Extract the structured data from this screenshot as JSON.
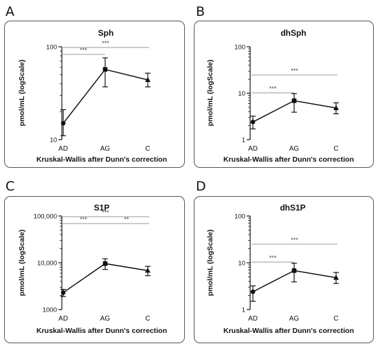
{
  "panels": [
    {
      "letter": "A"
    },
    {
      "letter": "B"
    },
    {
      "letter": "C"
    },
    {
      "letter": "D"
    }
  ],
  "chart_data": [
    {
      "type": "line",
      "title": "Sph",
      "xlabel": "Kruskal-Wallis after Dunn's correction",
      "ylabel": "pmol/mL (logScale)",
      "yscale": "log",
      "ylim": [
        10,
        100
      ],
      "yticks": [
        10,
        100
      ],
      "ytick_labels": [
        "10",
        "100"
      ],
      "categories": [
        "AD",
        "AG",
        "C"
      ],
      "series": [
        {
          "values": [
            15,
            57,
            44
          ],
          "err_low": [
            11,
            37,
            37
          ],
          "err_high": [
            21,
            76,
            52
          ]
        }
      ],
      "markers": [
        "circle",
        "square",
        "triangle"
      ],
      "significance": [
        {
          "from": "AD",
          "to": "AG",
          "label": "***",
          "level": 0
        },
        {
          "from": "AD",
          "to": "C",
          "label": "***",
          "level": 1
        }
      ]
    },
    {
      "type": "line",
      "title": "dhSph",
      "xlabel": "Kruskal-Wallis after Dunn's correction",
      "ylabel": "pmol/mL (logScale)",
      "yscale": "log",
      "ylim": [
        1,
        100
      ],
      "yticks": [
        1,
        10,
        100
      ],
      "ytick_labels": [
        "1",
        "10",
        "100"
      ],
      "categories": [
        "AD",
        "AG",
        "C"
      ],
      "series": [
        {
          "values": [
            2.4,
            6.9,
            4.8
          ],
          "err_low": [
            1.7,
            3.9,
            3.6
          ],
          "err_high": [
            3.2,
            9.8,
            6.2
          ]
        }
      ],
      "markers": [
        "circle",
        "square",
        "triangle"
      ],
      "significance": [
        {
          "from": "AD",
          "to": "AG",
          "label": "***",
          "level": 0
        },
        {
          "from": "AD",
          "to": "C",
          "label": "***",
          "level": 1
        }
      ]
    },
    {
      "type": "line",
      "title": "S1P",
      "xlabel": "Kruskal-Wallis after Dunn's correction",
      "ylabel": "pmol/mL (logScale)",
      "yscale": "log",
      "ylim": [
        1000,
        100000
      ],
      "yticks": [
        1000,
        10000,
        100000
      ],
      "ytick_labels": [
        "1000",
        "10,000",
        "100,000"
      ],
      "categories": [
        "AD",
        "AG",
        "C"
      ],
      "series": [
        {
          "values": [
            2300,
            9600,
            6800
          ],
          "err_low": [
            1900,
            7200,
            5300
          ],
          "err_high": [
            2700,
            12200,
            8400
          ]
        }
      ],
      "markers": [
        "circle",
        "square",
        "triangle"
      ],
      "significance": [
        {
          "from": "AD",
          "to": "AG",
          "label": "***",
          "level": 0
        },
        {
          "from": "AG",
          "to": "C",
          "label": "**",
          "level": 0
        },
        {
          "from": "AD",
          "to": "C",
          "label": "***",
          "level": 1
        }
      ]
    },
    {
      "type": "line",
      "title": "dhS1P",
      "xlabel": "Kruskal-Wallis after Dunn's correction",
      "ylabel": "pmol/mL (logScale)",
      "yscale": "log",
      "ylim": [
        1,
        100
      ],
      "yticks": [
        1,
        10,
        100
      ],
      "ytick_labels": [
        "1",
        "10",
        "100"
      ],
      "categories": [
        "AD",
        "AG",
        "C"
      ],
      "series": [
        {
          "values": [
            2.4,
            6.8,
            4.8
          ],
          "err_low": [
            1.5,
            3.9,
            3.6
          ],
          "err_high": [
            3.2,
            9.8,
            6.2
          ]
        }
      ],
      "markers": [
        "circle",
        "square",
        "triangle"
      ],
      "significance": [
        {
          "from": "AD",
          "to": "AG",
          "label": "***",
          "level": 0
        },
        {
          "from": "AD",
          "to": "C",
          "label": "***",
          "level": 1
        }
      ]
    }
  ]
}
